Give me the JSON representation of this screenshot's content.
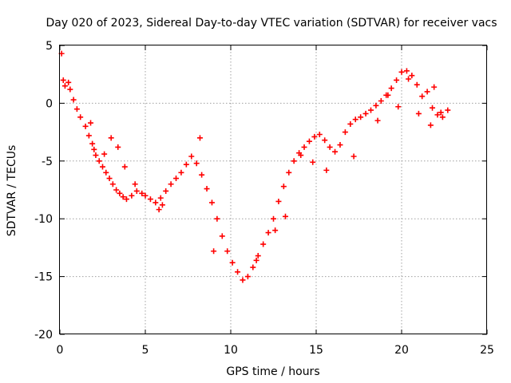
{
  "chart_data": {
    "type": "scatter",
    "title": "Day 020 of 2023, Sidereal Day-to-day VTEC variation (SDTVAR) for receiver vacs",
    "xlabel": "GPS time / hours",
    "ylabel": "SDTVAR / TECUs",
    "xlim": [
      0,
      25
    ],
    "ylim": [
      -20,
      5
    ],
    "xticks": [
      "0",
      "5",
      "10",
      "15",
      "20",
      "25"
    ],
    "yticks": [
      "5",
      "0",
      "-5",
      "-10",
      "-15",
      "-20"
    ],
    "grid": true,
    "marker": "+",
    "color": "#ff0000",
    "series": [
      {
        "name": "SDTVAR",
        "x": [
          0.1,
          0.2,
          0.3,
          0.5,
          0.6,
          0.8,
          1.0,
          1.2,
          1.5,
          1.7,
          1.9,
          2.0,
          2.1,
          2.3,
          2.5,
          2.7,
          2.9,
          3.1,
          3.3,
          3.5,
          3.7,
          3.9,
          4.2,
          4.5,
          4.8,
          5.0,
          5.3,
          5.6,
          5.9,
          6.2,
          6.5,
          6.8,
          7.1,
          7.4,
          7.7,
          8.0,
          8.3,
          8.6,
          8.9,
          9.2,
          9.5,
          9.8,
          10.1,
          10.4,
          10.7,
          11.0,
          11.3,
          11.6,
          11.9,
          12.2,
          12.5,
          12.8,
          13.1,
          13.4,
          13.7,
          14.0,
          14.3,
          14.6,
          14.9,
          15.2,
          15.5,
          15.8,
          16.1,
          16.4,
          16.7,
          17.0,
          17.3,
          17.6,
          17.9,
          18.2,
          18.5,
          18.8,
          19.1,
          19.4,
          19.7,
          20.0,
          20.3,
          20.6,
          20.9,
          21.2,
          21.5,
          21.8,
          22.1,
          22.4,
          22.7,
          3.0,
          3.4,
          3.8,
          4.4,
          5.8,
          8.2,
          12.6,
          13.2,
          14.1,
          15.6,
          17.2,
          18.6,
          20.4,
          21.0,
          21.7,
          22.3,
          1.8,
          2.6,
          6.0,
          9.0,
          11.5,
          14.8,
          19.2,
          19.8,
          21.9
        ],
        "y": [
          4.3,
          2.0,
          1.5,
          1.8,
          1.2,
          0.3,
          -0.5,
          -1.2,
          -2.0,
          -2.8,
          -3.5,
          -4.0,
          -4.5,
          -5.0,
          -5.5,
          -6.0,
          -6.5,
          -7.0,
          -7.5,
          -7.8,
          -8.1,
          -8.3,
          -8.0,
          -7.6,
          -7.8,
          -8.0,
          -8.3,
          -8.6,
          -8.2,
          -7.6,
          -7.0,
          -6.5,
          -6.0,
          -5.3,
          -4.6,
          -5.2,
          -6.2,
          -7.4,
          -8.6,
          -10.0,
          -11.5,
          -12.8,
          -13.8,
          -14.6,
          -15.3,
          -15.0,
          -14.2,
          -13.2,
          -12.2,
          -11.2,
          -10.0,
          -8.5,
          -7.2,
          -6.0,
          -5.0,
          -4.3,
          -3.8,
          -3.3,
          -2.9,
          -2.7,
          -3.2,
          -3.8,
          -4.2,
          -3.6,
          -2.5,
          -1.8,
          -1.4,
          -1.2,
          -0.9,
          -0.6,
          -0.2,
          0.2,
          0.7,
          1.3,
          2.0,
          2.7,
          2.8,
          2.4,
          1.6,
          0.6,
          1.0,
          -0.4,
          -1.0,
          -1.2,
          -0.6,
          -3.0,
          -3.8,
          -5.5,
          -7.0,
          -9.2,
          -3.0,
          -11.0,
          -9.8,
          -4.5,
          -5.8,
          -4.6,
          -1.5,
          2.1,
          -0.9,
          -1.9,
          -0.8,
          -1.7,
          -4.4,
          -8.8,
          -12.8,
          -13.6,
          -5.1,
          0.7,
          -0.3,
          1.4
        ]
      }
    ]
  }
}
